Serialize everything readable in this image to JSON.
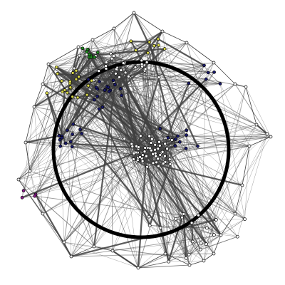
{
  "diagram": {
    "type": "network-graph",
    "background": "#ffffff",
    "edge_color": "#3f3f3f",
    "ring_color": "#000000",
    "node_outline": "#000000",
    "node_colors": {
      "white": "#ffffff",
      "navy": "#1a1a6e",
      "yellow": "#d8d84a",
      "green": "#1f8f1f",
      "magenta": "#8c1c8c",
      "olive": "#9a9a2a"
    },
    "groups": [
      {
        "name": "white",
        "node_count": 110
      },
      {
        "name": "navy",
        "node_count": 48
      },
      {
        "name": "yellow",
        "node_count": 28
      },
      {
        "name": "green",
        "node_count": 10
      },
      {
        "name": "magenta",
        "node_count": 4
      }
    ]
  }
}
